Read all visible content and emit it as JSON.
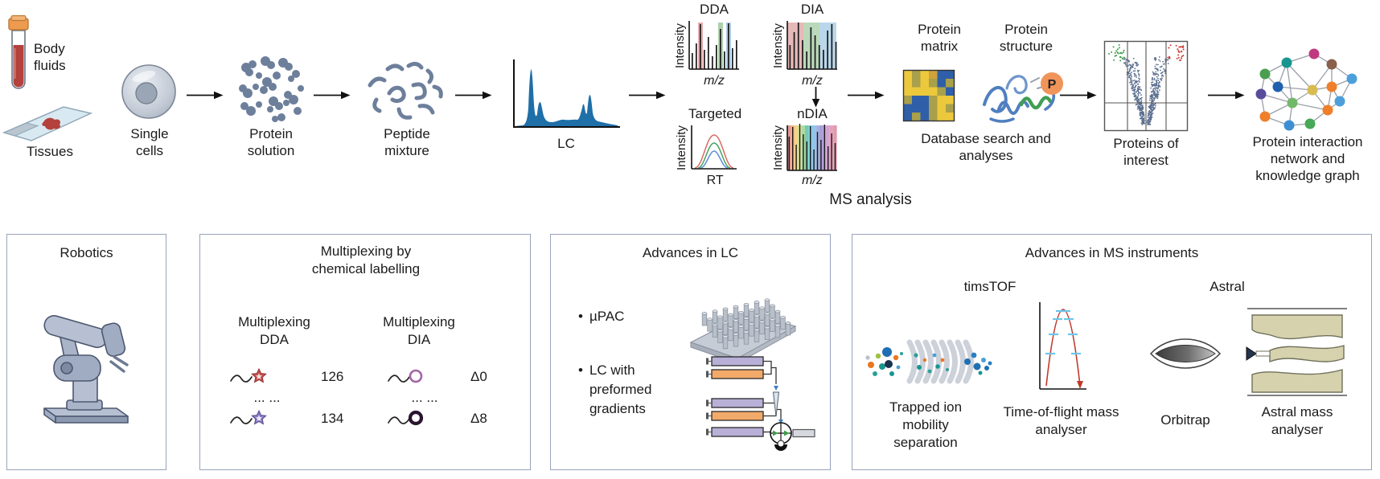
{
  "colors": {
    "lc_blue": "#1f6fa8",
    "box_border": "#97a3ba",
    "phospho_orange": "#f0945a",
    "volcano_up": "#cc3b35",
    "volcano_down": "#3a9e46",
    "scatter_slate": "#5b6e8f"
  },
  "flow": {
    "samples": {
      "body_fluids": "Body fluids",
      "tissues": "Tissues"
    },
    "single_cells": "Single cells",
    "protein_solution": "Protein solution",
    "peptide_mixture": "Peptide mixture",
    "lc": "LC",
    "ms": {
      "caption": "MS analysis",
      "dda": {
        "title": "DDA",
        "ylabel": "Intensity",
        "xlabel": "m/z"
      },
      "dia": {
        "title": "DIA",
        "ylabel": "Intensity",
        "xlabel": "m/z"
      },
      "targeted": {
        "title": "Targeted",
        "ylabel": "Intensity",
        "xlabel": "RT"
      },
      "ndia": {
        "title": "nDIA",
        "ylabel": "Intensity",
        "xlabel": "m/z"
      }
    },
    "database": {
      "matrix_label": "Protein matrix",
      "structure_label": "Protein structure",
      "phospho": "P",
      "caption": "Database search and analyses"
    },
    "volcano_label": "Proteins of interest",
    "network_label": "Protein interaction network and knowledge graph"
  },
  "boxes": {
    "robotics": {
      "title": "Robotics"
    },
    "multiplexing": {
      "title": "Multiplexing by chemical labelling",
      "dda_header": "Multiplexing DDA",
      "dia_header": "Multiplexing DIA",
      "dda_values": [
        "126",
        "134"
      ],
      "dia_values": [
        "Δ0",
        "Δ8"
      ],
      "ellipsis": "... ..."
    },
    "lc": {
      "title": "Advances in LC",
      "bullets": [
        "µPAC",
        "LC with preformed gradients"
      ]
    },
    "ms_instruments": {
      "title": "Advances in MS instruments",
      "timstof_title": "timsTOF",
      "tims_caption": "Trapped ion mobility separation",
      "tof_caption": "Time-of-flight mass analyser",
      "astral_title": "Astral",
      "orbitrap_caption": "Orbitrap",
      "astral_caption": "Astral mass analyser"
    }
  }
}
